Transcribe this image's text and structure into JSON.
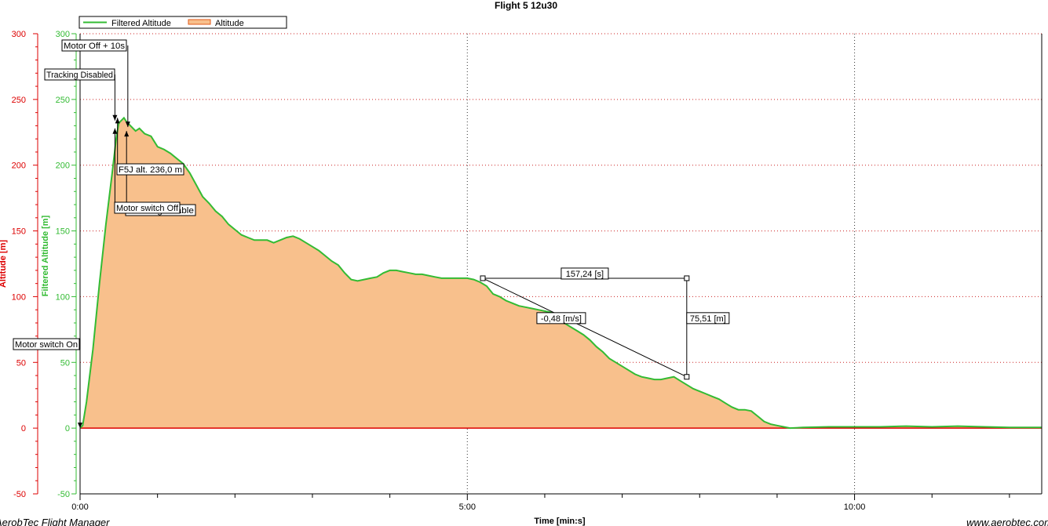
{
  "chart_data": {
    "type": "area",
    "title": "Flight 5 12u30",
    "xlabel": "Time [min:s]",
    "ylabel_left": "Altitude [m]",
    "ylabel_right": "Filtered Altitude [m]",
    "x_unit": "seconds",
    "xlim": [
      0,
      745
    ],
    "ylim": [
      -50,
      300
    ],
    "x_ticks": [
      {
        "value": 0,
        "label": "0:00"
      },
      {
        "value": 300,
        "label": "5:00"
      },
      {
        "value": 600,
        "label": "10:00"
      }
    ],
    "y_ticks": [
      -50,
      0,
      50,
      100,
      150,
      200,
      250,
      300
    ],
    "grid": true,
    "legend_position": "top-left",
    "colors": {
      "filtered": "#33bb33",
      "altitude_fill": "#f8c08c",
      "altitude_line": "#e05a1a",
      "zero_line": "#dd0000",
      "left_axis": "#dd0000",
      "right_axis": "#33bb33"
    },
    "series": [
      {
        "name": "Filtered Altitude",
        "role": "line",
        "points": [
          [
            0,
            0
          ],
          [
            2,
            2
          ],
          [
            5,
            20
          ],
          [
            10,
            60
          ],
          [
            15,
            110
          ],
          [
            20,
            155
          ],
          [
            25,
            195
          ],
          [
            28,
            220
          ],
          [
            30,
            232
          ],
          [
            32,
            234
          ],
          [
            34,
            236
          ],
          [
            36,
            233
          ],
          [
            40,
            229
          ],
          [
            43,
            226
          ],
          [
            46,
            228
          ],
          [
            50,
            224
          ],
          [
            55,
            222
          ],
          [
            60,
            214
          ],
          [
            65,
            212
          ],
          [
            70,
            209
          ],
          [
            75,
            205
          ],
          [
            80,
            201
          ],
          [
            85,
            194
          ],
          [
            90,
            185
          ],
          [
            95,
            176
          ],
          [
            100,
            171
          ],
          [
            105,
            165
          ],
          [
            110,
            161
          ],
          [
            115,
            155
          ],
          [
            120,
            151
          ],
          [
            125,
            147
          ],
          [
            130,
            145
          ],
          [
            135,
            143
          ],
          [
            140,
            143
          ],
          [
            145,
            143
          ],
          [
            150,
            141
          ],
          [
            155,
            143
          ],
          [
            160,
            145
          ],
          [
            165,
            146
          ],
          [
            170,
            144
          ],
          [
            175,
            141
          ],
          [
            180,
            138
          ],
          [
            185,
            135
          ],
          [
            190,
            131
          ],
          [
            195,
            127
          ],
          [
            200,
            124
          ],
          [
            205,
            118
          ],
          [
            210,
            113
          ],
          [
            215,
            112
          ],
          [
            220,
            113
          ],
          [
            225,
            114
          ],
          [
            230,
            115
          ],
          [
            235,
            118
          ],
          [
            240,
            120
          ],
          [
            245,
            120
          ],
          [
            250,
            119
          ],
          [
            255,
            118
          ],
          [
            260,
            117
          ],
          [
            265,
            117
          ],
          [
            270,
            116
          ],
          [
            275,
            115
          ],
          [
            280,
            114
          ],
          [
            285,
            114
          ],
          [
            290,
            114
          ],
          [
            295,
            114
          ],
          [
            300,
            114
          ],
          [
            305,
            113
          ],
          [
            310,
            111
          ],
          [
            315,
            108
          ],
          [
            320,
            102
          ],
          [
            325,
            100
          ],
          [
            330,
            97
          ],
          [
            335,
            95
          ],
          [
            340,
            93
          ],
          [
            345,
            92
          ],
          [
            350,
            91
          ],
          [
            355,
            90
          ],
          [
            360,
            89
          ],
          [
            365,
            88
          ],
          [
            370,
            85
          ],
          [
            375,
            80
          ],
          [
            380,
            77
          ],
          [
            385,
            74
          ],
          [
            390,
            71
          ],
          [
            395,
            67
          ],
          [
            400,
            62
          ],
          [
            405,
            58
          ],
          [
            410,
            53
          ],
          [
            415,
            50
          ],
          [
            420,
            47
          ],
          [
            425,
            44
          ],
          [
            430,
            41
          ],
          [
            435,
            39
          ],
          [
            440,
            38
          ],
          [
            445,
            37
          ],
          [
            450,
            37
          ],
          [
            455,
            38
          ],
          [
            460,
            39
          ],
          [
            465,
            36
          ],
          [
            470,
            33
          ],
          [
            475,
            30
          ],
          [
            480,
            28
          ],
          [
            485,
            26
          ],
          [
            490,
            24
          ],
          [
            495,
            22
          ],
          [
            500,
            19
          ],
          [
            505,
            16
          ],
          [
            510,
            14
          ],
          [
            515,
            14
          ],
          [
            520,
            13
          ],
          [
            525,
            9
          ],
          [
            530,
            5
          ],
          [
            535,
            3
          ],
          [
            540,
            2
          ],
          [
            545,
            1
          ],
          [
            550,
            0
          ],
          [
            560,
            0.5
          ],
          [
            580,
            1
          ],
          [
            600,
            1
          ],
          [
            620,
            1
          ],
          [
            640,
            1.5
          ],
          [
            660,
            1
          ],
          [
            680,
            1.5
          ],
          [
            700,
            1
          ],
          [
            720,
            0.5
          ],
          [
            745,
            0.5
          ]
        ]
      },
      {
        "name": "Altitude",
        "role": "filled-area",
        "points": [
          [
            0,
            0
          ],
          [
            2,
            2
          ],
          [
            5,
            20
          ],
          [
            10,
            60
          ],
          [
            15,
            110
          ],
          [
            20,
            155
          ],
          [
            25,
            195
          ],
          [
            28,
            220
          ],
          [
            30,
            232
          ],
          [
            32,
            234
          ],
          [
            34,
            236
          ],
          [
            36,
            233
          ],
          [
            40,
            229
          ],
          [
            43,
            226
          ],
          [
            46,
            228
          ],
          [
            50,
            224
          ],
          [
            55,
            222
          ],
          [
            60,
            214
          ],
          [
            65,
            212
          ],
          [
            70,
            209
          ],
          [
            75,
            205
          ],
          [
            80,
            201
          ],
          [
            85,
            194
          ],
          [
            90,
            185
          ],
          [
            95,
            176
          ],
          [
            100,
            171
          ],
          [
            105,
            165
          ],
          [
            110,
            161
          ],
          [
            115,
            155
          ],
          [
            120,
            151
          ],
          [
            125,
            147
          ],
          [
            130,
            145
          ],
          [
            135,
            143
          ],
          [
            140,
            143
          ],
          [
            145,
            143
          ],
          [
            150,
            141
          ],
          [
            155,
            143
          ],
          [
            160,
            145
          ],
          [
            165,
            146
          ],
          [
            170,
            144
          ],
          [
            175,
            141
          ],
          [
            180,
            138
          ],
          [
            185,
            135
          ],
          [
            190,
            131
          ],
          [
            195,
            127
          ],
          [
            200,
            124
          ],
          [
            205,
            118
          ],
          [
            210,
            113
          ],
          [
            215,
            112
          ],
          [
            220,
            113
          ],
          [
            225,
            114
          ],
          [
            230,
            115
          ],
          [
            235,
            118
          ],
          [
            240,
            120
          ],
          [
            245,
            120
          ],
          [
            250,
            119
          ],
          [
            255,
            118
          ],
          [
            260,
            117
          ],
          [
            265,
            117
          ],
          [
            270,
            116
          ],
          [
            275,
            115
          ],
          [
            280,
            114
          ],
          [
            285,
            114
          ],
          [
            290,
            114
          ],
          [
            295,
            114
          ],
          [
            300,
            114
          ],
          [
            305,
            113
          ],
          [
            310,
            111
          ],
          [
            315,
            108
          ],
          [
            320,
            102
          ],
          [
            325,
            100
          ],
          [
            330,
            97
          ],
          [
            335,
            95
          ],
          [
            340,
            93
          ],
          [
            345,
            92
          ],
          [
            350,
            91
          ],
          [
            355,
            90
          ],
          [
            360,
            89
          ],
          [
            365,
            88
          ],
          [
            370,
            85
          ],
          [
            375,
            80
          ],
          [
            380,
            77
          ],
          [
            385,
            74
          ],
          [
            390,
            71
          ],
          [
            395,
            67
          ],
          [
            400,
            62
          ],
          [
            405,
            58
          ],
          [
            410,
            53
          ],
          [
            415,
            50
          ],
          [
            420,
            47
          ],
          [
            425,
            44
          ],
          [
            430,
            41
          ],
          [
            435,
            39
          ],
          [
            440,
            38
          ],
          [
            445,
            37
          ],
          [
            450,
            37
          ],
          [
            455,
            38
          ],
          [
            460,
            39
          ],
          [
            465,
            36
          ],
          [
            470,
            33
          ],
          [
            475,
            30
          ],
          [
            480,
            28
          ],
          [
            485,
            26
          ],
          [
            490,
            24
          ],
          [
            495,
            22
          ],
          [
            500,
            19
          ],
          [
            505,
            16
          ],
          [
            510,
            14
          ],
          [
            515,
            14
          ],
          [
            520,
            13
          ],
          [
            525,
            9
          ],
          [
            530,
            5
          ],
          [
            535,
            3
          ],
          [
            540,
            2
          ],
          [
            545,
            1
          ],
          [
            550,
            0
          ],
          [
            560,
            0.5
          ],
          [
            580,
            1
          ],
          [
            600,
            1
          ],
          [
            620,
            1
          ],
          [
            640,
            1.5
          ],
          [
            660,
            1
          ],
          [
            680,
            1.5
          ],
          [
            700,
            1
          ],
          [
            720,
            0.5
          ],
          [
            745,
            0.5
          ]
        ]
      }
    ],
    "event_markers": [
      {
        "label": "Motor switch On",
        "x": 0,
        "y": 0
      },
      {
        "label": "Tracking Disabled",
        "x": 27,
        "y": 234
      },
      {
        "label": "Motor Off + 10s",
        "x": 37,
        "y": 229
      },
      {
        "label": "F5J alt. 236,0 m",
        "x": 29,
        "y": 236
      },
      {
        "label": "Motor switch Off",
        "x": 27,
        "y": 228
      },
      {
        "label": "Tracking Enable",
        "x": 36,
        "y": 226
      }
    ],
    "measurement": {
      "start": [
        312,
        114
      ],
      "end": [
        470,
        39
      ],
      "dt_label": "157,24 [s]",
      "dh_label": "75,51 [m]",
      "rate_label": "-0,48 [m/s]"
    },
    "footer_left": "AerobTec Flight Manager",
    "footer_right": "www.aerobtec.com"
  }
}
